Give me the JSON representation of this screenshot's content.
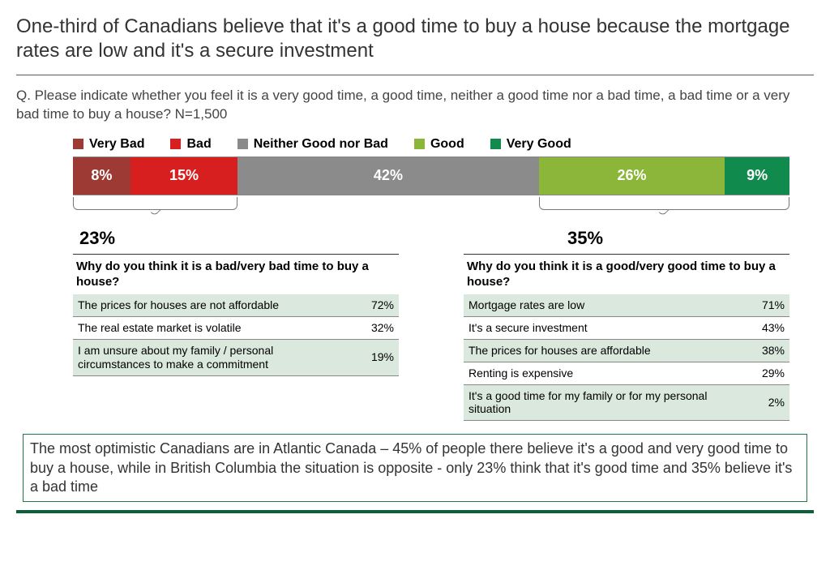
{
  "title": "One-third of Canadians believe that it's a good time to buy a house because the mortgage rates are low and it's a secure investment",
  "question": "Q. Please indicate whether you feel it is a very good time, a good time, neither a good time nor a bad time, a bad time or a very bad time to buy a house? N=1,500",
  "legend": [
    {
      "label": "Very Bad",
      "color": "#9c3a33"
    },
    {
      "label": "Bad",
      "color": "#d81f1f"
    },
    {
      "label": "Neither Good nor Bad",
      "color": "#8b8b8b"
    },
    {
      "label": "Good",
      "color": "#8bb63a"
    },
    {
      "label": "Very Good",
      "color": "#118a4e"
    }
  ],
  "bar": {
    "segments": [
      {
        "label": "8%",
        "value": 8,
        "color": "#9c3a33"
      },
      {
        "label": "15%",
        "value": 15,
        "color": "#d81f1f"
      },
      {
        "label": "42%",
        "value": 42,
        "color": "#8b8b8b"
      },
      {
        "label": "26%",
        "value": 26,
        "color": "#8bb63a"
      },
      {
        "label": "9%",
        "value": 9,
        "color": "#118a4e"
      }
    ],
    "bracket_left": {
      "start_pct": 0,
      "end_pct": 23
    },
    "bracket_right": {
      "start_pct": 65,
      "end_pct": 100
    }
  },
  "left": {
    "total": "23%",
    "question": "Why do you think it is a bad/very bad time to buy a house?",
    "rows": [
      {
        "text": "The prices for houses are not affordable",
        "pct": "72%",
        "alt": true
      },
      {
        "text": "The real estate market is volatile",
        "pct": "32%",
        "alt": false
      },
      {
        "text": "I am unsure about my family / personal circumstances to make a commitment",
        "pct": "19%",
        "alt": true
      }
    ]
  },
  "right": {
    "total": "35%",
    "question": "Why do you think it is a good/very good time to buy a house?",
    "rows": [
      {
        "text": "Mortgage rates are low",
        "pct": "71%",
        "alt": true
      },
      {
        "text": "It's a secure investment",
        "pct": "43%",
        "alt": false
      },
      {
        "text": "The prices for houses are affordable",
        "pct": "38%",
        "alt": true
      },
      {
        "text": "Renting is expensive",
        "pct": "29%",
        "alt": false
      },
      {
        "text": "It's a good time for my family or for my personal situation",
        "pct": "2%",
        "alt": true
      }
    ]
  },
  "callout": "The most optimistic Canadians are in Atlantic Canada – 45% of people there believe it's a good and very good time to buy a house, while in British Columbia the situation is opposite - only 23% think that it's good time and 35% believe it's a bad time",
  "colors": {
    "callout_border": "#1e7a4a",
    "footer_bar": "#0d5f3a",
    "alt_row_bg": "#dae8dd"
  }
}
